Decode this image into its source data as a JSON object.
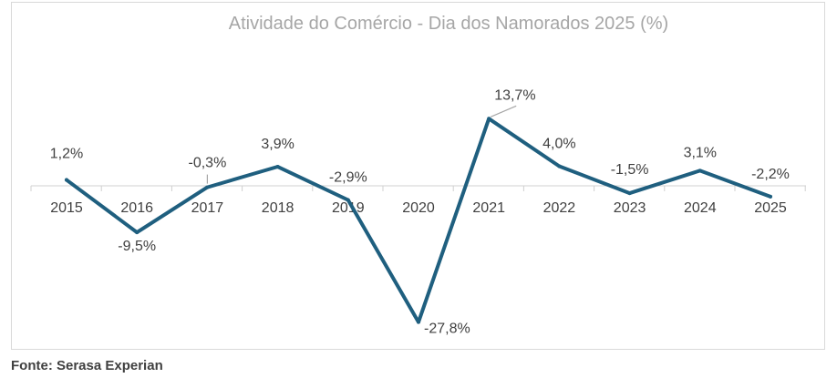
{
  "chart_data": {
    "type": "line",
    "title": "Atividade do Comércio - Dia dos Namorados 2025 (%)",
    "xlabel": "",
    "ylabel": "",
    "categories": [
      "2015",
      "2016",
      "2017",
      "2018",
      "2019",
      "2020",
      "2021",
      "2022",
      "2023",
      "2024",
      "2025"
    ],
    "series": [
      {
        "values": [
          1.2,
          -9.5,
          -0.3,
          3.9,
          -2.9,
          -27.8,
          13.7,
          4.0,
          -1.5,
          3.1,
          -2.2
        ],
        "labels": [
          "1,2%",
          "-9,5%",
          "-0,3%",
          "3,9%",
          "-2,9%",
          "-27,8%",
          "13,7%",
          "4,0%",
          "-1,5%",
          "3,1%",
          "-2,2%"
        ]
      }
    ],
    "ylim": [
      -30,
      16
    ],
    "grid": false,
    "legend": "none",
    "line_color": "#1f5f7f"
  },
  "source": "Fonte: Serasa Experian"
}
